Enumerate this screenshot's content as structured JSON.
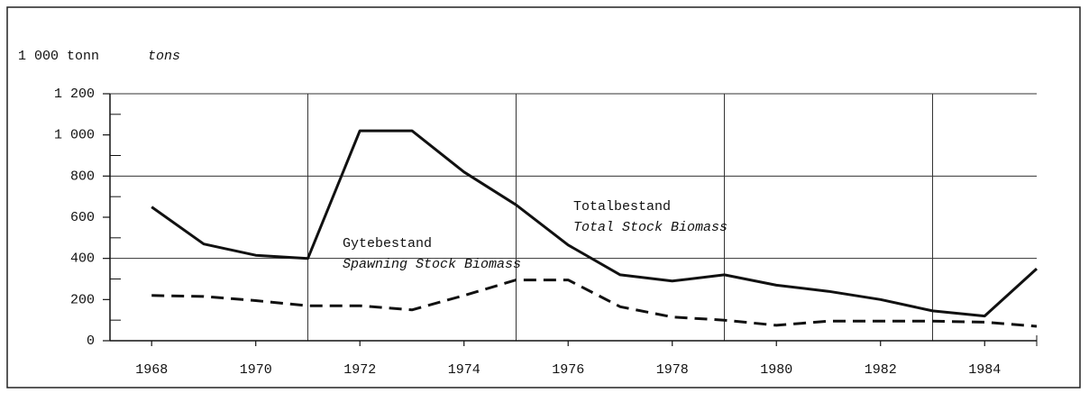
{
  "chart_data": {
    "type": "line",
    "y_label": "1 000 tonn",
    "y_label_en": "tons",
    "annotations": [
      {
        "text": "Totalbestand",
        "italic": false
      },
      {
        "text": "Total Stock Biomass",
        "italic": true
      },
      {
        "text": "Gytebestand",
        "italic": false
      },
      {
        "text": "Spawning Stock Biomass",
        "italic": true
      }
    ],
    "x": [
      1968,
      1969,
      1970,
      1971,
      1972,
      1973,
      1974,
      1975,
      1976,
      1977,
      1978,
      1979,
      1980,
      1981,
      1982,
      1983,
      1984,
      1985
    ],
    "series": [
      {
        "name": "Totalbestand",
        "color": "#111111",
        "dash": false,
        "values": [
          650,
          470,
          415,
          400,
          1020,
          1020,
          820,
          660,
          465,
          320,
          290,
          320,
          270,
          240,
          200,
          145,
          120,
          350
        ]
      },
      {
        "name": "Gytebestand",
        "color": "#111111",
        "dash": true,
        "values": [
          220,
          215,
          195,
          170,
          170,
          150,
          220,
          295,
          295,
          165,
          115,
          100,
          75,
          95,
          95,
          95,
          90,
          70
        ]
      }
    ],
    "xlim": [
      1967.2,
      1985
    ],
    "xticks": [
      1968,
      1970,
      1972,
      1974,
      1976,
      1978,
      1980,
      1982,
      1984
    ],
    "xgrid": [
      1971,
      1975,
      1979,
      1983
    ],
    "ylim": [
      0,
      1200
    ],
    "yticks": [
      0,
      200,
      400,
      600,
      800,
      {
        "value": 1000,
        "label": "1 000"
      },
      {
        "value": 1200,
        "label": "1 200"
      }
    ],
    "yminorticks": [
      100,
      300,
      500,
      700,
      900,
      1100
    ],
    "ygrid": [
      400,
      800,
      1200
    ]
  }
}
